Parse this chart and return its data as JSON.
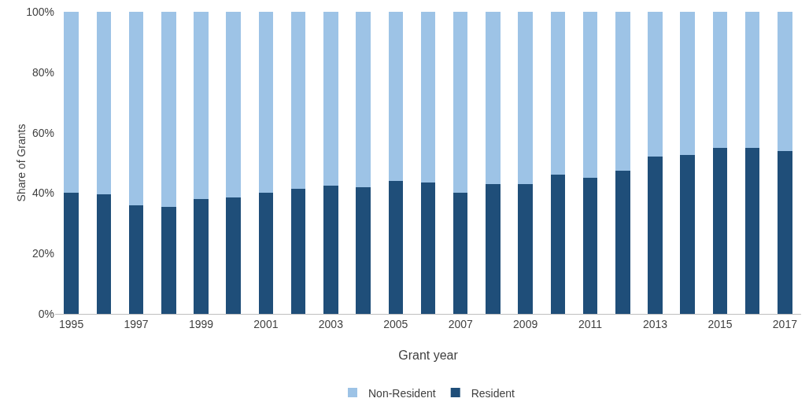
{
  "chart_data": {
    "type": "bar",
    "stacked": true,
    "xlabel": "Grant year",
    "ylabel": "Share of Grants",
    "categories": [
      "1995",
      null,
      "1997",
      null,
      "1999",
      null,
      "2001",
      null,
      "2003",
      null,
      "2005",
      null,
      "2007",
      null,
      "2009",
      null,
      "2011",
      null,
      "2013",
      null,
      "2015",
      null,
      "2017"
    ],
    "series": [
      {
        "name": "Resident",
        "color": "#1f4e79",
        "values": [
          40,
          39.5,
          36,
          35.5,
          38,
          38.5,
          40,
          41.5,
          42.5,
          42,
          44,
          43.5,
          40,
          43,
          43,
          46,
          45,
          47.5,
          52,
          52.5,
          55,
          55,
          54
        ]
      },
      {
        "name": "Non-Resident",
        "color": "#9dc3e6",
        "values": [
          60,
          60.5,
          64,
          64.5,
          62,
          61.5,
          60,
          58.5,
          57.5,
          58,
          56,
          56.5,
          60,
          57,
          57,
          54,
          55,
          52.5,
          48,
          47.5,
          45,
          45,
          46
        ]
      }
    ],
    "ylim": [
      0,
      100
    ],
    "yticks": [
      {
        "value": 0,
        "label": "0%"
      },
      {
        "value": 20,
        "label": "20%"
      },
      {
        "value": 40,
        "label": "40%"
      },
      {
        "value": 60,
        "label": "60%"
      },
      {
        "value": 80,
        "label": "80%"
      },
      {
        "value": 100,
        "label": "100%"
      }
    ],
    "grid": false,
    "legend": "bottom"
  }
}
